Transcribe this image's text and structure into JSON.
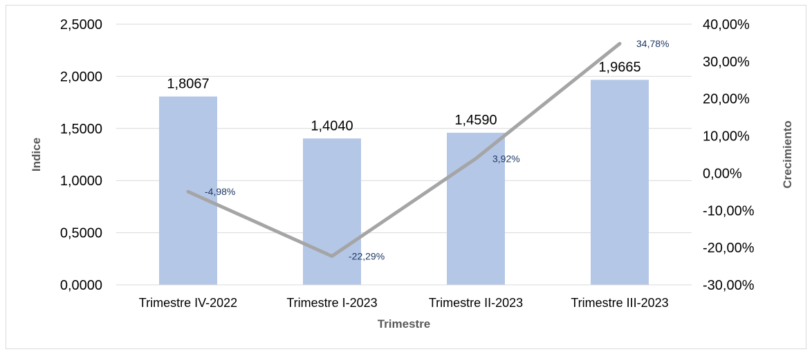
{
  "chart_data": {
    "type": "bar",
    "categories": [
      "Trimestre IV-2022",
      "Trimestre I-2023",
      "Trimestre II-2023",
      "Trimestre III-2023"
    ],
    "series": [
      {
        "type": "bar",
        "axis": "left",
        "values": [
          1.8067,
          1.404,
          1.459,
          1.9665
        ],
        "labels": [
          "1,8067",
          "1,4040",
          "1,4590",
          "1,9665"
        ]
      },
      {
        "type": "line",
        "axis": "right",
        "values": [
          -4.98,
          -22.29,
          3.92,
          34.78
        ],
        "labels": [
          "-4,98%",
          "-22,29%",
          "3,92%",
          "34,78%"
        ]
      }
    ],
    "xlabel": "Trimestre",
    "ylabel": "Indice",
    "y2label": "Crecimiento",
    "ylim": [
      0,
      2.5
    ],
    "y_ticks": [
      0,
      0.5,
      1,
      1.5,
      2,
      2.5
    ],
    "y_tick_labels": [
      "0,0000",
      "0,5000",
      "1,0000",
      "1,5000",
      "2,0000",
      "2,5000"
    ],
    "y2lim": [
      -30,
      40
    ],
    "y2_ticks": [
      -30,
      -20,
      -10,
      0,
      10,
      20,
      30,
      40
    ],
    "y2_tick_labels": [
      "-30,00%",
      "-20,00%",
      "-10,00%",
      "0,00%",
      "10,00%",
      "20,00%",
      "30,00%",
      "40,00%"
    ],
    "grid": true,
    "legend": "none",
    "colors": {
      "bar": "#b4c7e7",
      "line": "#a5a5a5",
      "line_label": "#1f3864",
      "grid": "#d9d9d9",
      "axis_title": "#595959"
    }
  }
}
